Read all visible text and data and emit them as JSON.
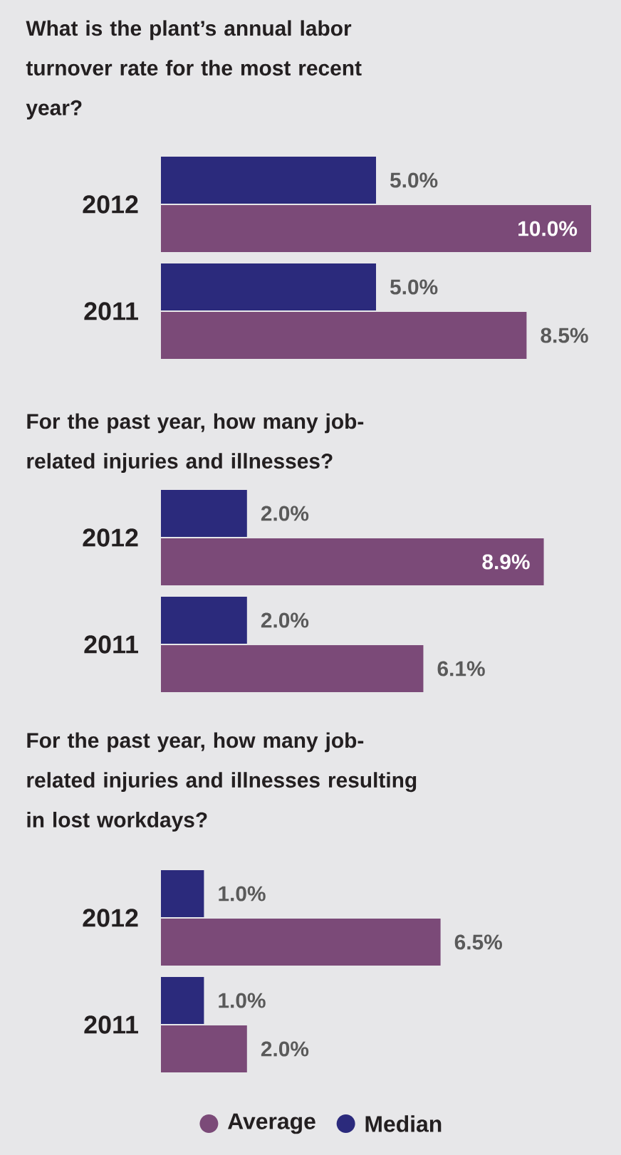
{
  "chart_data": [
    {
      "type": "bar",
      "orientation": "horizontal",
      "title": "What is the plant’s annual labor turnover rate for the most recent year?",
      "categories": [
        "2012",
        "2011"
      ],
      "series": [
        {
          "color": "#2b2a7c",
          "values": [
            5.0,
            5.0
          ],
          "value_labels": [
            "5.0%",
            "5.0%"
          ]
        },
        {
          "color": "#7b4a78",
          "values": [
            10.0,
            8.5
          ],
          "value_labels": [
            "10.0%",
            "8.5%"
          ]
        }
      ]
    },
    {
      "type": "bar",
      "orientation": "horizontal",
      "title": "For the past year, how many job-related injuries and illnesses?",
      "categories": [
        "2012",
        "2011"
      ],
      "series": [
        {
          "color": "#2b2a7c",
          "values": [
            2.0,
            2.0
          ],
          "value_labels": [
            "2.0%",
            "2.0%"
          ]
        },
        {
          "color": "#7b4a78",
          "values": [
            8.9,
            6.1
          ],
          "value_labels": [
            "8.9%",
            "6.1%"
          ]
        }
      ]
    },
    {
      "type": "bar",
      "orientation": "horizontal",
      "legend": "bottom",
      "title": "For the past year, how many job-related injuries and illnesses resulting in lost workdays?",
      "categories": [
        "2012",
        "2011"
      ],
      "series": [
        {
          "name": "Median",
          "color": "#2b2a7c",
          "values": [
            1.0,
            1.0
          ],
          "value_labels": [
            "1.0%",
            "1.0%"
          ]
        },
        {
          "name": "Average",
          "color": "#7b4a78",
          "values": [
            6.5,
            2.0
          ],
          "value_labels": [
            "6.5%",
            "2.0%"
          ]
        }
      ]
    }
  ]
}
